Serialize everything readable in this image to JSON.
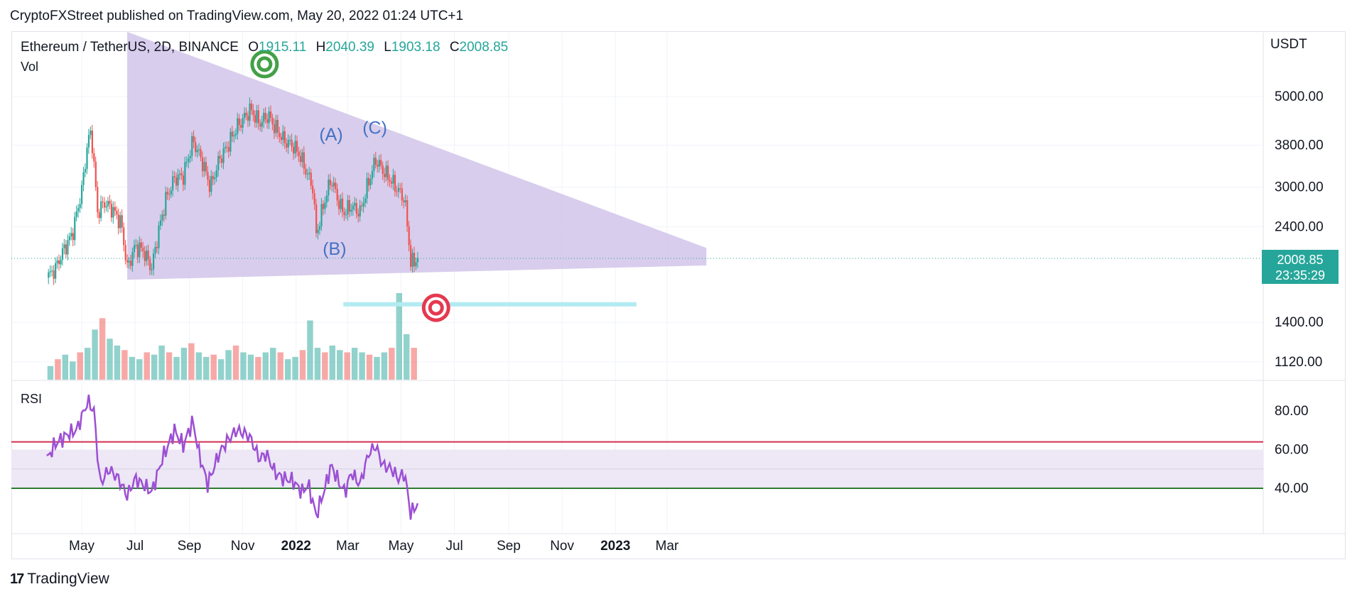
{
  "header": {
    "publisher_line": "CryptoFXStreet published on TradingView.com, May 20, 2022 01:24 UTC+1"
  },
  "legend": {
    "symbol": "Ethereum / TetherUS, 2D, BINANCE",
    "open_key": "O",
    "open": "1915.11",
    "high_key": "H",
    "high": "2040.39",
    "low_key": "L",
    "low": "1903.18",
    "close_key": "C",
    "close": "2008.85",
    "volume_label": "Vol",
    "rsi_label": "RSI"
  },
  "price_scale_unit": "USDT",
  "last_price_box": {
    "price": "2008.85",
    "countdown": "23:35:29"
  },
  "footer": {
    "brand": "TradingView",
    "logo_glyph": "17"
  },
  "colors": {
    "up": "#26a69a",
    "down": "#ef5350",
    "wedge": "#d1c4e9",
    "rsi_line": "#9c4fd3",
    "rsi_band": "#ede7f6",
    "rsi_upper": "#d32f4f",
    "rsi_lower": "#2e7d32",
    "target_line": "#b2ebf2",
    "wave_labels": "#4472c4",
    "target_green": "#43a047",
    "target_red": "#e53950"
  },
  "chart_data": [
    {
      "type": "candlestick",
      "title": "Ethereum / TetherUS, 2D, BINANCE",
      "y_scale": "log",
      "y_ticks": [
        5000,
        3800,
        3000,
        2400,
        1400,
        1120
      ],
      "y_tick_labels": [
        "5000.00",
        "3800.00",
        "3000.00",
        "2400.00",
        "1400.00",
        "1120.00"
      ],
      "x_tick_labels": [
        "May",
        "Jul",
        "Sep",
        "Nov",
        "2022",
        "Mar",
        "May",
        "Jul",
        "Sep",
        "Nov",
        "2023",
        "Mar"
      ],
      "close_path": [
        [
          "2021-03-22",
          1800
        ],
        [
          "2021-04-01",
          1900
        ],
        [
          "2021-04-10",
          2100
        ],
        [
          "2021-04-20",
          2300
        ],
        [
          "2021-05-01",
          2950
        ],
        [
          "2021-05-08",
          3900
        ],
        [
          "2021-05-12",
          4100
        ],
        [
          "2021-05-19",
          2600
        ],
        [
          "2021-05-27",
          2750
        ],
        [
          "2021-06-05",
          2650
        ],
        [
          "2021-06-15",
          2450
        ],
        [
          "2021-06-22",
          1900
        ],
        [
          "2021-07-01",
          2150
        ],
        [
          "2021-07-10",
          2100
        ],
        [
          "2021-07-20",
          1900
        ],
        [
          "2021-07-27",
          2300
        ],
        [
          "2021-08-05",
          2800
        ],
        [
          "2021-08-15",
          3150
        ],
        [
          "2021-08-25",
          3200
        ],
        [
          "2021-09-05",
          3900
        ],
        [
          "2021-09-15",
          3500
        ],
        [
          "2021-09-25",
          3000
        ],
        [
          "2021-10-05",
          3500
        ],
        [
          "2021-10-15",
          3800
        ],
        [
          "2021-10-25",
          4200
        ],
        [
          "2021-11-05",
          4500
        ],
        [
          "2021-11-10",
          4650
        ],
        [
          "2021-11-20",
          4300
        ],
        [
          "2021-11-30",
          4500
        ],
        [
          "2021-12-08",
          4200
        ],
        [
          "2021-12-18",
          3900
        ],
        [
          "2021-12-28",
          3800
        ],
        [
          "2022-01-05",
          3600
        ],
        [
          "2022-01-12",
          3300
        ],
        [
          "2022-01-20",
          3000
        ],
        [
          "2022-01-24",
          2300
        ],
        [
          "2022-02-03",
          2800
        ],
        [
          "2022-02-10",
          3150
        ],
        [
          "2022-02-20",
          2700
        ],
        [
          "2022-02-25",
          2600
        ],
        [
          "2022-03-05",
          2700
        ],
        [
          "2022-03-15",
          2600
        ],
        [
          "2022-03-25",
          3100
        ],
        [
          "2022-04-02",
          3500
        ],
        [
          "2022-04-10",
          3300
        ],
        [
          "2022-04-20",
          3100
        ],
        [
          "2022-04-30",
          2900
        ],
        [
          "2022-05-05",
          2800
        ],
        [
          "2022-05-10",
          2200
        ],
        [
          "2022-05-12",
          1950
        ],
        [
          "2022-05-20",
          2008.85
        ]
      ],
      "last_price": 2008.85,
      "wedge": {
        "upper_start": [
          "2021-06-22",
          7200
        ],
        "upper_end": [
          "2023-04-15",
          2130
        ],
        "lower_start": [
          "2021-06-22",
          1780
        ],
        "lower_end": [
          "2023-04-15",
          1930
        ]
      },
      "annotations": [
        {
          "label": "(A)",
          "date": "2022-02-10",
          "price": 3900
        },
        {
          "label": "(B)",
          "date": "2022-02-14",
          "price": 2050
        },
        {
          "label": "(C)",
          "date": "2022-04-01",
          "price": 4050
        }
      ],
      "target_level": {
        "price": 1550,
        "from": "2022-02-24",
        "to": "2023-01-25"
      },
      "targets": [
        {
          "kind": "green-bullseye",
          "date": "2021-11-26",
          "price": 6000
        },
        {
          "kind": "red-bullseye",
          "date": "2022-06-10",
          "price": 1520
        }
      ]
    },
    {
      "type": "bar",
      "title": "Vol",
      "series": [
        {
          "values": [
            6,
            9,
            11,
            8,
            12,
            14,
            22,
            27,
            18,
            15,
            13,
            10,
            9,
            12,
            11,
            15,
            12,
            10,
            14,
            16,
            12,
            10,
            11,
            9,
            13,
            15,
            12,
            11,
            10,
            12,
            14,
            12,
            9,
            10,
            13,
            26,
            14,
            12,
            15,
            13,
            12,
            14,
            12,
            11,
            10,
            12,
            14,
            38,
            20,
            14
          ]
        }
      ]
    },
    {
      "type": "line",
      "title": "RSI",
      "ylim": [
        20,
        95
      ],
      "y_ticks": [
        80,
        60,
        40
      ],
      "y_tick_labels": [
        "80.00",
        "60.00",
        "40.00"
      ],
      "levels": {
        "upper": 64,
        "lower": 40,
        "mid": 50,
        "band": [
          40,
          60
        ]
      },
      "rsi_path": [
        [
          "2021-03-22",
          55
        ],
        [
          "2021-04-01",
          63
        ],
        [
          "2021-04-15",
          68
        ],
        [
          "2021-04-25",
          70
        ],
        [
          "2021-05-08",
          85
        ],
        [
          "2021-05-15",
          80
        ],
        [
          "2021-05-22",
          42
        ],
        [
          "2021-06-01",
          50
        ],
        [
          "2021-06-12",
          45
        ],
        [
          "2021-06-22",
          36
        ],
        [
          "2021-07-01",
          45
        ],
        [
          "2021-07-10",
          42
        ],
        [
          "2021-07-20",
          38
        ],
        [
          "2021-08-01",
          55
        ],
        [
          "2021-08-15",
          70
        ],
        [
          "2021-08-25",
          62
        ],
        [
          "2021-09-05",
          75
        ],
        [
          "2021-09-12",
          58
        ],
        [
          "2021-09-22",
          42
        ],
        [
          "2021-10-05",
          58
        ],
        [
          "2021-10-15",
          65
        ],
        [
          "2021-10-25",
          70
        ],
        [
          "2021-11-05",
          68
        ],
        [
          "2021-11-10",
          66
        ],
        [
          "2021-11-20",
          55
        ],
        [
          "2021-11-28",
          58
        ],
        [
          "2021-12-08",
          48
        ],
        [
          "2021-12-18",
          45
        ],
        [
          "2021-12-28",
          44
        ],
        [
          "2022-01-08",
          38
        ],
        [
          "2022-01-15",
          42
        ],
        [
          "2022-01-24",
          26
        ],
        [
          "2022-02-03",
          40
        ],
        [
          "2022-02-10",
          52
        ],
        [
          "2022-02-20",
          42
        ],
        [
          "2022-02-26",
          38
        ],
        [
          "2022-03-05",
          48
        ],
        [
          "2022-03-15",
          42
        ],
        [
          "2022-03-25",
          58
        ],
        [
          "2022-04-02",
          62
        ],
        [
          "2022-04-10",
          52
        ],
        [
          "2022-04-20",
          50
        ],
        [
          "2022-04-28",
          45
        ],
        [
          "2022-05-05",
          48
        ],
        [
          "2022-05-10",
          33
        ],
        [
          "2022-05-12",
          27
        ],
        [
          "2022-05-20",
          32
        ]
      ]
    }
  ]
}
